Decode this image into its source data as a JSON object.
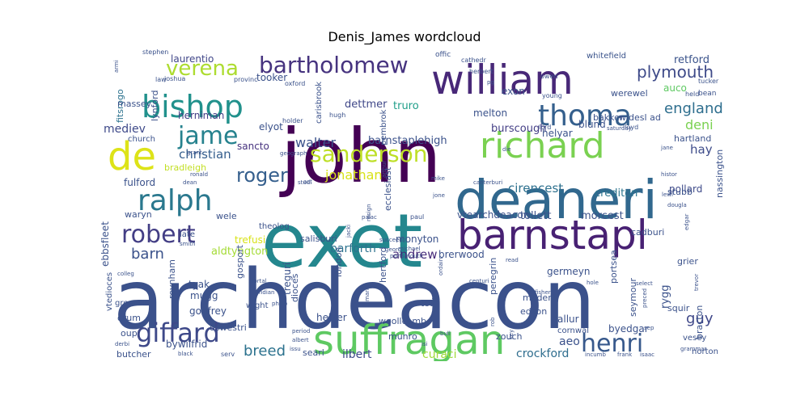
{
  "chart_data": {
    "type": "wordcloud",
    "title": "Denis_James wordcloud",
    "words": [
      {
        "text": "archdeacon",
        "weight": 100,
        "color": "#3b518b"
      },
      {
        "text": "john",
        "weight": 92,
        "color": "#440154"
      },
      {
        "text": "exet",
        "weight": 85,
        "color": "#24878e"
      },
      {
        "text": "deaneri",
        "weight": 68,
        "color": "#31688e"
      },
      {
        "text": "suffragan",
        "weight": 50,
        "color": "#5ec962"
      },
      {
        "text": "william",
        "weight": 48,
        "color": "#482878"
      },
      {
        "text": "barnstapl",
        "weight": 47,
        "color": "#482173"
      },
      {
        "text": "richard",
        "weight": 44,
        "color": "#7ad151"
      },
      {
        "text": "de",
        "weight": 42,
        "color": "#dde318"
      },
      {
        "text": "bishop",
        "weight": 37,
        "color": "#21918c"
      },
      {
        "text": "thoma",
        "weight": 36,
        "color": "#35608d"
      },
      {
        "text": "ralph",
        "weight": 35,
        "color": "#2a788e"
      },
      {
        "text": "giffard",
        "weight": 32,
        "color": "#3e4989"
      },
      {
        "text": "henri",
        "weight": 31,
        "color": "#38598c"
      },
      {
        "text": "robert",
        "weight": 31,
        "color": "#433e85"
      },
      {
        "text": "jame",
        "weight": 30,
        "color": "#26828e"
      },
      {
        "text": "bartholomew",
        "weight": 29,
        "color": "#46337f"
      },
      {
        "text": "sanderson",
        "weight": 28,
        "color": "#bddf26"
      },
      {
        "text": "verena",
        "weight": 27,
        "color": "#addc30"
      },
      {
        "text": "roger",
        "weight": 24,
        "color": "#355f8d"
      },
      {
        "text": "plymouth",
        "weight": 20,
        "color": "#3e4a89"
      },
      {
        "text": "breed",
        "weight": 18,
        "color": "#2c728e"
      },
      {
        "text": "barn",
        "weight": 18,
        "color": "#3b528b"
      },
      {
        "text": "guy",
        "weight": 18,
        "color": "#3f4889"
      },
      {
        "text": "england",
        "weight": 18,
        "color": "#2e6e8e"
      },
      {
        "text": "walter",
        "weight": 17,
        "color": "#3b528b"
      },
      {
        "text": "jonathan",
        "weight": 17,
        "color": "#d8e219"
      },
      {
        "text": "christian",
        "weight": 16,
        "color": "#355e8d"
      },
      {
        "text": "crockford",
        "weight": 15,
        "color": "#2e6d8e"
      },
      {
        "text": "cirencest",
        "weight": 15,
        "color": "#2d708e"
      },
      {
        "text": "deni",
        "weight": 15,
        "color": "#7ad151"
      },
      {
        "text": "hay",
        "weight": 15,
        "color": "#3e4c8a"
      },
      {
        "text": "andrew",
        "weight": 14,
        "color": "#472c7a"
      },
      {
        "text": "barforth",
        "weight": 14,
        "color": "#2c728e"
      },
      {
        "text": "ilbert",
        "weight": 14,
        "color": "#3e4a89"
      },
      {
        "text": "curaci",
        "weight": 14,
        "color": "#a0da39"
      },
      {
        "text": "aeo",
        "weight": 14,
        "color": "#3b528b"
      },
      {
        "text": "mediev",
        "weight": 14,
        "color": "#3e4989"
      },
      {
        "text": "burscough",
        "weight": 14,
        "color": "#433e85"
      },
      {
        "text": "whitefield",
        "weight": 10,
        "color": "#3a538b"
      },
      {
        "text": "retford",
        "weight": 13,
        "color": "#3a538b"
      },
      {
        "text": "crediton",
        "weight": 13,
        "color": "#2b748e"
      },
      {
        "text": "pollard",
        "weight": 12,
        "color": "#3e4a89"
      },
      {
        "text": "dettmer",
        "weight": 13,
        "color": "#3f4788"
      },
      {
        "text": "truro",
        "weight": 13,
        "color": "#1f9e89"
      },
      {
        "text": "auco",
        "weight": 12,
        "color": "#5ec962"
      },
      {
        "text": "lynford",
        "weight": 12,
        "color": "#3b528b"
      },
      {
        "text": "fitsrogo",
        "weight": 12,
        "color": "#2c728e"
      },
      {
        "text": "laurentio",
        "weight": 12,
        "color": "#404688"
      },
      {
        "text": "tooker",
        "weight": 12,
        "color": "#3b528b"
      },
      {
        "text": "herniman",
        "weight": 12,
        "color": "#433e85"
      },
      {
        "text": "elyot",
        "weight": 12,
        "color": "#3b528b"
      },
      {
        "text": "sancto",
        "weight": 12,
        "color": "#46327e"
      },
      {
        "text": "fulford",
        "weight": 12,
        "color": "#3b528b"
      },
      {
        "text": "bradleigh",
        "weight": 11,
        "color": "#c2df23"
      },
      {
        "text": "trefusi",
        "weight": 12,
        "color": "#d8e219"
      },
      {
        "text": "aldtyngton",
        "weight": 13,
        "color": "#a5db36"
      },
      {
        "text": "tollett",
        "weight": 13,
        "color": "#3b528b"
      },
      {
        "text": "morcest",
        "weight": 13,
        "color": "#3b528b"
      },
      {
        "text": "vtearchdeacon",
        "weight": 12,
        "color": "#3b528b"
      },
      {
        "text": "barnstaplehigh",
        "weight": 13,
        "color": "#3b528b"
      },
      {
        "text": "helyar",
        "weight": 12,
        "color": "#3b528b"
      },
      {
        "text": "blund",
        "weight": 12,
        "color": "#3b528b"
      },
      {
        "text": "bakker",
        "weight": 11,
        "color": "#3b528b"
      },
      {
        "text": "widesl ad",
        "weight": 11,
        "color": "#3b528b"
      },
      {
        "text": "melton",
        "weight": 12,
        "color": "#3b528b"
      },
      {
        "text": "exon",
        "weight": 12,
        "color": "#3b528b"
      },
      {
        "text": "werewel",
        "weight": 11,
        "color": "#3b528b"
      },
      {
        "text": "hartland",
        "weight": 11,
        "color": "#3b528b"
      },
      {
        "text": "waryn",
        "weight": 11,
        "color": "#3b528b"
      },
      {
        "text": "wele",
        "weight": 11,
        "color": "#3b528b"
      },
      {
        "text": "late",
        "weight": 10,
        "color": "#3b528b"
      },
      {
        "text": "ebbsfleet",
        "weight": 12,
        "color": "#3b528b"
      },
      {
        "text": "monyton",
        "weight": 12,
        "color": "#3b528b"
      },
      {
        "text": "brerwood",
        "weight": 12,
        "color": "#3b528b"
      },
      {
        "text": "germeyn",
        "weight": 12,
        "color": "#3b528b"
      },
      {
        "text": "cadburi",
        "weight": 11,
        "color": "#3b528b"
      },
      {
        "text": "grier",
        "weight": 11,
        "color": "#3b528b"
      },
      {
        "text": "rygg",
        "weight": 13,
        "color": "#3b528b"
      },
      {
        "text": "bracton",
        "weight": 11,
        "color": "#3b528b"
      },
      {
        "text": "squir",
        "weight": 11,
        "color": "#3b528b"
      },
      {
        "text": "stubb",
        "weight": 11,
        "color": "#3b528b"
      },
      {
        "text": "nassington",
        "weight": 11,
        "color": "#3b528b"
      },
      {
        "text": "reynham",
        "weight": 11,
        "color": "#3b528b"
      },
      {
        "text": "tyak",
        "weight": 12,
        "color": "#3b528b"
      },
      {
        "text": "mugg",
        "weight": 12,
        "color": "#3b528b"
      },
      {
        "text": "godfrey",
        "weight": 12,
        "color": "#3b528b"
      },
      {
        "text": "treguri",
        "weight": 12,
        "color": "#3b528b"
      },
      {
        "text": "helyer",
        "weight": 12,
        "color": "#3b528b"
      },
      {
        "text": "bywilfrid",
        "weight": 12,
        "color": "#3b528b"
      },
      {
        "text": "searl",
        "weight": 11,
        "color": "#3b528b"
      },
      {
        "text": "woollcomb",
        "weight": 11,
        "color": "#3b528b"
      },
      {
        "text": "munro",
        "weight": 11,
        "color": "#3b528b"
      },
      {
        "text": "zouch",
        "weight": 11,
        "color": "#3b528b"
      },
      {
        "text": "edson",
        "weight": 11,
        "color": "#3b528b"
      },
      {
        "text": "allur",
        "weight": 12,
        "color": "#3b528b"
      },
      {
        "text": "byedgar",
        "weight": 12,
        "color": "#3b528b"
      },
      {
        "text": "portsea",
        "weight": 11,
        "color": "#3b528b"
      },
      {
        "text": "seymour",
        "weight": 11,
        "color": "#3b528b"
      },
      {
        "text": "oswestri",
        "weight": 11,
        "color": "#3b528b"
      },
      {
        "text": "orum",
        "weight": 11,
        "color": "#3b528b"
      },
      {
        "text": "oup",
        "weight": 11,
        "color": "#3b528b"
      },
      {
        "text": "butcher",
        "weight": 11,
        "color": "#3b528b"
      },
      {
        "text": "greener",
        "weight": 10,
        "color": "#3b528b"
      },
      {
        "text": "massey",
        "weight": 11,
        "color": "#3b528b"
      },
      {
        "text": "church",
        "weight": 10,
        "color": "#3b528b"
      },
      {
        "text": "cornwal",
        "weight": 10,
        "color": "#3b528b"
      },
      {
        "text": "vesey",
        "weight": 10,
        "color": "#3b528b"
      },
      {
        "text": "norton",
        "weight": 10,
        "color": "#3b528b"
      },
      {
        "text": "london",
        "weight": 11,
        "color": "#3b528b"
      },
      {
        "text": "hertford",
        "weight": 11,
        "color": "#3b528b"
      },
      {
        "text": "dioces",
        "weight": 11,
        "color": "#3b528b"
      },
      {
        "text": "totn",
        "weight": 11,
        "color": "#3b528b"
      },
      {
        "text": "modern",
        "weight": 11,
        "color": "#3b528b"
      },
      {
        "text": "peregrin",
        "weight": 11,
        "color": "#3b528b"
      },
      {
        "text": "salisburi",
        "weight": 11,
        "color": "#3b528b"
      },
      {
        "text": "gosport",
        "weight": 11,
        "color": "#3b528b"
      },
      {
        "text": "theolog",
        "weight": 10,
        "color": "#3b528b"
      },
      {
        "text": "wight",
        "weight": 10,
        "color": "#3b528b"
      },
      {
        "text": "vtedioces",
        "weight": 10,
        "color": "#3b528b"
      },
      {
        "text": "ecclesiast",
        "weight": 11,
        "color": "#3b528b"
      },
      {
        "text": "carisbrook",
        "weight": 10,
        "color": "#3b528b"
      },
      {
        "text": "pembrok",
        "weight": 10,
        "color": "#3b528b"
      },
      {
        "text": "hugh",
        "weight": 8,
        "color": "#3b528b"
      },
      {
        "text": "holder",
        "weight": 8,
        "color": "#3b528b"
      },
      {
        "text": "oxford",
        "weight": 8,
        "color": "#3b528b"
      },
      {
        "text": "provinc",
        "weight": 8,
        "color": "#3b528b"
      },
      {
        "text": "joshua",
        "weight": 8,
        "color": "#3b528b"
      },
      {
        "text": "law",
        "weight": 8,
        "color": "#3b528b"
      },
      {
        "text": "stephen",
        "weight": 8,
        "color": "#3b528b"
      },
      {
        "text": "armi",
        "weight": 7,
        "color": "#3b528b"
      },
      {
        "text": "offic",
        "weight": 9,
        "color": "#3b528b"
      },
      {
        "text": "cathedr",
        "weight": 8,
        "color": "#3b528b"
      },
      {
        "text": "herbert",
        "weight": 8,
        "color": "#3b528b"
      },
      {
        "text": "pg",
        "weight": 7,
        "color": "#3b528b"
      },
      {
        "text": "owen",
        "weight": 8,
        "color": "#3b528b"
      },
      {
        "text": "young",
        "weight": 8,
        "color": "#3b528b"
      },
      {
        "text": "held",
        "weight": 8,
        "color": "#3b528b"
      },
      {
        "text": "bean",
        "weight": 9,
        "color": "#3b528b"
      },
      {
        "text": "tucker",
        "weight": 8,
        "color": "#3b528b"
      },
      {
        "text": "lord",
        "weight": 8,
        "color": "#3b528b"
      },
      {
        "text": "saturday",
        "weight": 7,
        "color": "#3b528b"
      },
      {
        "text": "lloyd",
        "weight": 8,
        "color": "#3b528b"
      },
      {
        "text": "arthur",
        "weight": 7,
        "color": "#3b528b"
      },
      {
        "text": "die",
        "weight": 7,
        "color": "#3b528b"
      },
      {
        "text": "jane",
        "weight": 7,
        "color": "#3b528b"
      },
      {
        "text": "geograph",
        "weight": 7,
        "color": "#3b528b"
      },
      {
        "text": "grant",
        "weight": 7,
        "color": "#3b528b"
      },
      {
        "text": "ronald",
        "weight": 7,
        "color": "#3b528b"
      },
      {
        "text": "dean",
        "weight": 7,
        "color": "#3b528b"
      },
      {
        "text": "act",
        "weight": 7,
        "color": "#3b528b"
      },
      {
        "text": "studi",
        "weight": 7,
        "color": "#3b528b"
      },
      {
        "text": "canterburi",
        "weight": 7,
        "color": "#3b528b"
      },
      {
        "text": "mike",
        "weight": 7,
        "color": "#3b528b"
      },
      {
        "text": "histor",
        "weight": 7,
        "color": "#3b528b"
      },
      {
        "text": "lewi",
        "weight": 7,
        "color": "#3b528b"
      },
      {
        "text": "dougla",
        "weight": 7,
        "color": "#3b528b"
      },
      {
        "text": "jone",
        "weight": 7,
        "color": "#3b528b"
      },
      {
        "text": "jacki",
        "weight": 7,
        "color": "#3b528b"
      },
      {
        "text": "resign",
        "weight": 7,
        "color": "#3b528b"
      },
      {
        "text": "palac",
        "weight": 7,
        "color": "#3b528b"
      },
      {
        "text": "paul",
        "weight": 8,
        "color": "#3b528b"
      },
      {
        "text": "edgar",
        "weight": 7,
        "color": "#3b528b"
      },
      {
        "text": "smith",
        "weight": 7,
        "color": "#3b528b"
      },
      {
        "text": "succeed",
        "weight": 7,
        "color": "#3b528b"
      },
      {
        "text": "georg",
        "weight": 7,
        "color": "#3b528b"
      },
      {
        "text": "michael",
        "weight": 7,
        "color": "#3b528b"
      },
      {
        "text": "portsmouth",
        "weight": 7,
        "color": "#3b528b"
      },
      {
        "text": "ordain",
        "weight": 7,
        "color": "#3b528b"
      },
      {
        "text": "read",
        "weight": 7,
        "color": "#3b528b"
      },
      {
        "text": "colleg",
        "weight": 7,
        "color": "#3b528b"
      },
      {
        "text": "portal",
        "weight": 7,
        "color": "#3b528b"
      },
      {
        "text": "indian",
        "weight": 7,
        "color": "#3b528b"
      },
      {
        "text": "philip",
        "weight": 7,
        "color": "#3b528b"
      },
      {
        "text": "mark",
        "weight": 7,
        "color": "#3b528b"
      },
      {
        "text": "centuri",
        "weight": 7,
        "color": "#3b528b"
      },
      {
        "text": "vacat",
        "weight": 7,
        "color": "#3b528b"
      },
      {
        "text": "fisher",
        "weight": 7,
        "color": "#3b528b"
      },
      {
        "text": "hole",
        "weight": 7,
        "color": "#3b528b"
      },
      {
        "text": "select",
        "weight": 7,
        "color": "#3b528b"
      },
      {
        "text": "preced",
        "weight": 7,
        "color": "#3b528b"
      },
      {
        "text": "trevor",
        "weight": 7,
        "color": "#3b528b"
      },
      {
        "text": "rob",
        "weight": 7,
        "color": "#3b528b"
      },
      {
        "text": "period",
        "weight": 7,
        "color": "#3b528b"
      },
      {
        "text": "albert",
        "weight": 7,
        "color": "#3b528b"
      },
      {
        "text": "issu",
        "weight": 7,
        "color": "#3b528b"
      },
      {
        "text": "bull",
        "weight": 7,
        "color": "#3b528b"
      },
      {
        "text": "isi",
        "weight": 7,
        "color": "#3b528b"
      },
      {
        "text": "key",
        "weight": 7,
        "color": "#3b528b"
      },
      {
        "text": "sep",
        "weight": 7,
        "color": "#3b528b"
      },
      {
        "text": "grammar",
        "weight": 7,
        "color": "#3b528b"
      },
      {
        "text": "derbi",
        "weight": 7,
        "color": "#3b528b"
      },
      {
        "text": "black",
        "weight": 7,
        "color": "#3b528b"
      },
      {
        "text": "serv",
        "weight": 8,
        "color": "#3b528b"
      },
      {
        "text": "incumb",
        "weight": 7,
        "color": "#3b528b"
      },
      {
        "text": "frank",
        "weight": 7,
        "color": "#3b528b"
      },
      {
        "text": "isaac",
        "weight": 7,
        "color": "#3b528b"
      }
    ]
  }
}
